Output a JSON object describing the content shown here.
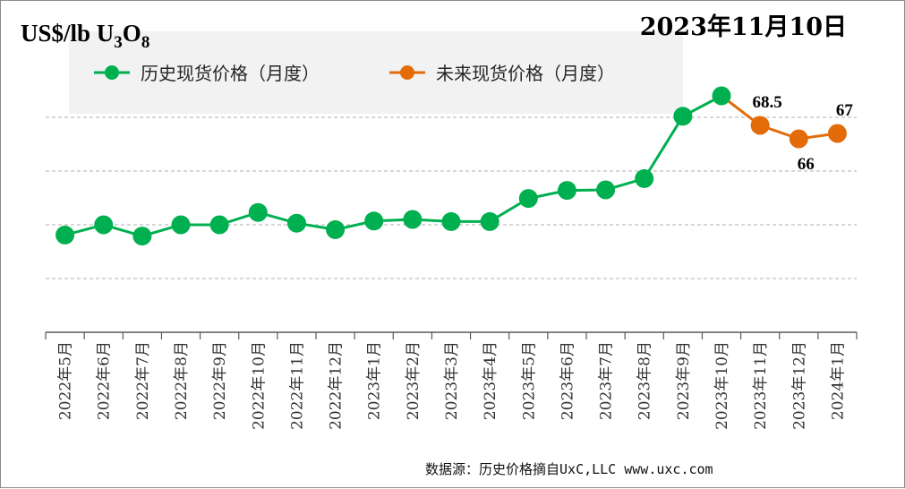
{
  "chart_data": {
    "type": "line",
    "title": "2023年11月10日",
    "ylabel_main": "US$/lb U",
    "ylabel_sub1": "3",
    "ylabel_mid": "O",
    "ylabel_sub2": "8",
    "categories": [
      "2022年5月",
      "2022年6月",
      "2022年7月",
      "2022年8月",
      "2022年9月",
      "2022年10月",
      "2022年11月",
      "2022年12月",
      "2023年1月",
      "2023年2月",
      "2023年3月",
      "2023年4月",
      "2023年5月",
      "2023年6月",
      "2023年7月",
      "2023年8月",
      "2023年9月",
      "2023年10月",
      "2023年11月",
      "2023年12月",
      "2024年1月"
    ],
    "series": [
      {
        "name": "历史现货价格（月度）",
        "color": "#00b050",
        "values": [
          48.1,
          50.0,
          47.9,
          50.0,
          50.0,
          52.3,
          50.3,
          49.1,
          50.7,
          51.0,
          50.6,
          50.6,
          54.9,
          56.4,
          56.5,
          58.6,
          70.2,
          74.0,
          null,
          null,
          null
        ]
      },
      {
        "name": "未来现货价格（月度）",
        "color": "#e36c09",
        "values": [
          null,
          null,
          null,
          null,
          null,
          null,
          null,
          null,
          null,
          null,
          null,
          null,
          null,
          null,
          null,
          null,
          null,
          74.0,
          68.5,
          66,
          67
        ]
      }
    ],
    "data_labels": [
      {
        "category": "2023年11月",
        "text": "68.5",
        "pos": "above"
      },
      {
        "category": "2023年12月",
        "text": "66",
        "pos": "below"
      },
      {
        "category": "2024年1月",
        "text": "67",
        "pos": "above"
      }
    ],
    "ylim": [
      30,
      80
    ],
    "y_gridlines": [
      40,
      50,
      60,
      70
    ],
    "grid": true,
    "legend_position": "top",
    "source": "数据源：历史价格摘自UxC,LLC  www.uxc.com"
  }
}
